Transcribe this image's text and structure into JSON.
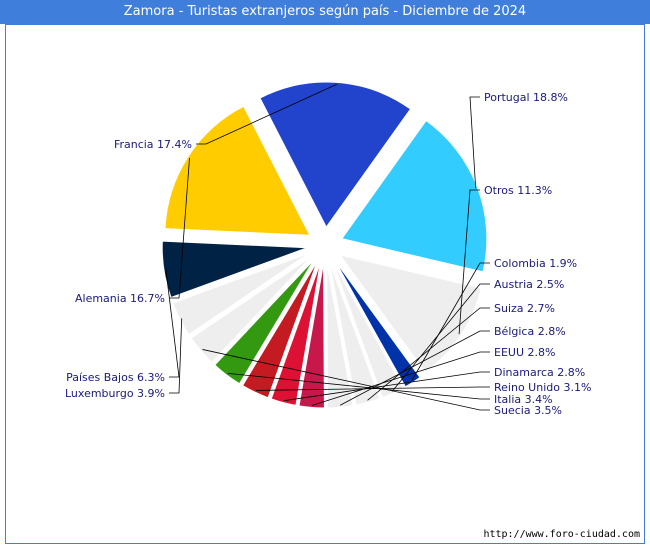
{
  "chart_data": {
    "type": "pie",
    "title": "Zamora - Turistas extranjeros según país - Diciembre de 2024",
    "source": "http://www.foro-ciudad.com",
    "slices": [
      {
        "label": "Portugal",
        "value": 18.8,
        "text": "Portugal 18.8%",
        "color": "#33ccff"
      },
      {
        "label": "Otros",
        "value": 11.3,
        "text": "Otros 11.3%",
        "color": "#eeeeee"
      },
      {
        "label": "Colombia",
        "value": 1.9,
        "text": "Colombia 1.9%",
        "color": "#0033aa"
      },
      {
        "label": "Austria",
        "value": 2.5,
        "text": "Austria 2.5%",
        "color": "#eeeeee"
      },
      {
        "label": "Suiza",
        "value": 2.7,
        "text": "Suiza 2.7%",
        "color": "#eeeeee"
      },
      {
        "label": "Bélgica",
        "value": 2.8,
        "text": "Bélgica 2.8%",
        "color": "#eeeeee"
      },
      {
        "label": "EEUU",
        "value": 2.8,
        "text": "EEUU 2.8%",
        "color": "#c8174a"
      },
      {
        "label": "Dinamarca",
        "value": 2.8,
        "text": "Dinamarca 2.8%",
        "color": "#dd1133"
      },
      {
        "label": "Reino Unido",
        "value": 3.1,
        "text": "Reino Unido 3.1%",
        "color": "#c41a22"
      },
      {
        "label": "Italia",
        "value": 3.4,
        "text": "Italia 3.4%",
        "color": "#339911"
      },
      {
        "label": "Suecia",
        "value": 3.5,
        "text": "Suecia 3.5%",
        "color": "#eeeeee"
      },
      {
        "label": "Luxemburgo",
        "value": 3.9,
        "text": "Luxemburgo 3.9%",
        "color": "#eeeeee"
      },
      {
        "label": "Países Bajos",
        "value": 6.3,
        "text": "Países Bajos 6.3%",
        "color": "#002244"
      },
      {
        "label": "Alemania",
        "value": 16.7,
        "text": "Alemania 16.7%",
        "color": "#ffcc00"
      },
      {
        "label": "Francia",
        "value": 17.4,
        "text": "Francia 17.4%",
        "color": "#2244cc"
      }
    ]
  }
}
